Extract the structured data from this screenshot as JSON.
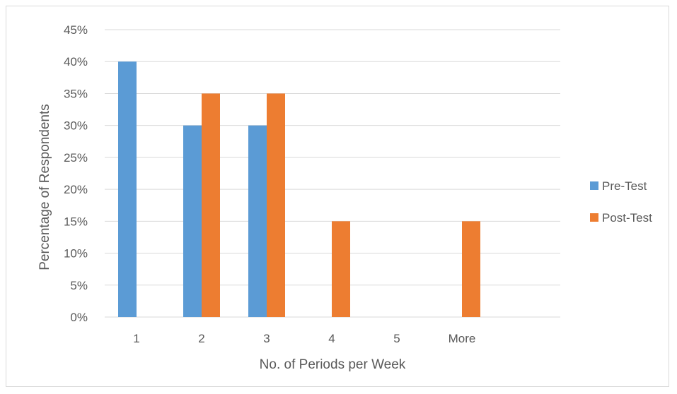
{
  "chart_data": {
    "type": "bar",
    "title": "",
    "xlabel": "No. of Periods per Week",
    "ylabel": "Percentage of Respondents",
    "categories": [
      "1",
      "2",
      "3",
      "4",
      "5",
      "More"
    ],
    "series": [
      {
        "name": "Pre-Test",
        "color": "#5b9bd5",
        "values": [
          40,
          30,
          30,
          0,
          0,
          0
        ]
      },
      {
        "name": "Post-Test",
        "color": "#ed7d31",
        "values": [
          0,
          35,
          35,
          15,
          0,
          15
        ]
      }
    ],
    "ylim": [
      0,
      45
    ],
    "ytick_labels": [
      "0%",
      "5%",
      "10%",
      "15%",
      "20%",
      "25%",
      "30%",
      "35%",
      "40%",
      "45%"
    ],
    "grid": true,
    "gridline_color": "#d9d9d9",
    "legend_position": "right"
  }
}
